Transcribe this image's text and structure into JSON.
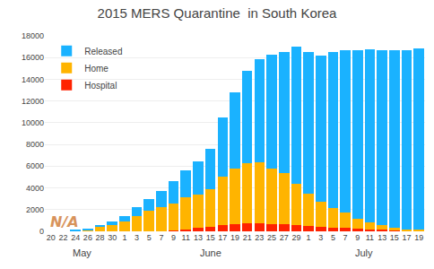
{
  "chart_data": {
    "type": "bar",
    "title": "2015 MERS Quarantine  in South Korea",
    "stacked": true,
    "categories": [
      "20",
      "22",
      "24",
      "26",
      "28",
      "30",
      "1",
      "3",
      "5",
      "7",
      "9",
      "11",
      "13",
      "15",
      "17",
      "19",
      "21",
      "23",
      "25",
      "27",
      "29",
      "1",
      "3",
      "5",
      "7",
      "9",
      "11",
      "13",
      "15",
      "17",
      "19"
    ],
    "series": [
      {
        "name": "Hospital",
        "color": "#ff2200",
        "values": [
          0,
          0,
          0,
          0,
          0,
          0,
          0,
          0,
          0,
          0,
          100,
          200,
          300,
          400,
          600,
          700,
          750,
          750,
          700,
          650,
          600,
          500,
          400,
          350,
          300,
          250,
          200,
          150,
          100,
          50,
          50
        ]
      },
      {
        "name": "Home",
        "color": "#ffb400",
        "values": [
          0,
          0,
          50,
          150,
          400,
          600,
          900,
          1400,
          1900,
          2200,
          2500,
          2900,
          3100,
          3500,
          4400,
          5100,
          5500,
          5600,
          5100,
          4700,
          3800,
          3000,
          2300,
          1800,
          1400,
          900,
          600,
          400,
          250,
          150,
          80
        ]
      },
      {
        "name": "Released",
        "color": "#1ab2ff",
        "values": [
          0,
          0,
          50,
          100,
          200,
          300,
          500,
          800,
          1100,
          1500,
          2000,
          2500,
          3000,
          3700,
          5500,
          7000,
          8500,
          9500,
          10500,
          11200,
          12600,
          13000,
          13500,
          14400,
          15000,
          15500,
          16000,
          16100,
          16300,
          16500,
          16700
        ]
      }
    ],
    "ylim": [
      0,
      18000
    ],
    "yticks": [
      0,
      2000,
      4000,
      6000,
      8000,
      10000,
      12000,
      14000,
      16000,
      18000
    ],
    "grid": true,
    "legend": "upper left",
    "annotations": [
      {
        "text": "N/A",
        "x": 0.5,
        "y": 850,
        "color": "#d4884a"
      },
      {
        "text": "May",
        "span": [
          0,
          5
        ]
      },
      {
        "text": "June",
        "span": [
          6,
          20
        ]
      },
      {
        "text": "July",
        "span": [
          21,
          30
        ]
      }
    ]
  }
}
